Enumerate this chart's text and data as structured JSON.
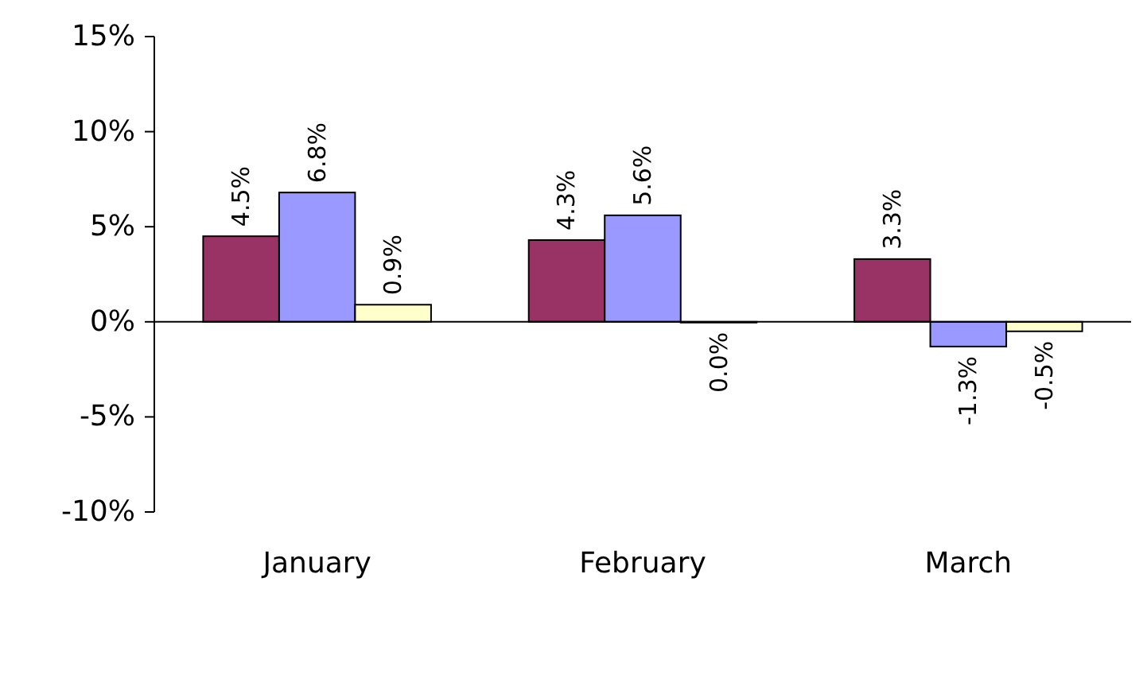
{
  "chart_data": {
    "type": "bar",
    "categories": [
      "January",
      "February",
      "March"
    ],
    "series": [
      {
        "color": "#993366",
        "values": [
          4.5,
          4.3,
          3.3
        ],
        "value_labels": [
          "4.5%",
          "4.3%",
          "3.3%"
        ]
      },
      {
        "color": "#9999ff",
        "values": [
          6.8,
          5.6,
          -1.3
        ],
        "value_labels": [
          "6.8%",
          "5.6%",
          "-1.3%"
        ]
      },
      {
        "color": "#ffffcc",
        "values": [
          0.9,
          -0.04,
          -0.5
        ],
        "value_labels": [
          "0.9%",
          "0.0%",
          "-0.5%"
        ]
      }
    ],
    "ylim": [
      -10,
      15
    ],
    "yticks": [
      {
        "value": -10,
        "label": "-10%"
      },
      {
        "value": -5,
        "label": "-5%"
      },
      {
        "value": 0,
        "label": "0%"
      },
      {
        "value": 5,
        "label": "5%"
      },
      {
        "value": 10,
        "label": "10%"
      },
      {
        "value": 15,
        "label": "15%"
      }
    ]
  }
}
